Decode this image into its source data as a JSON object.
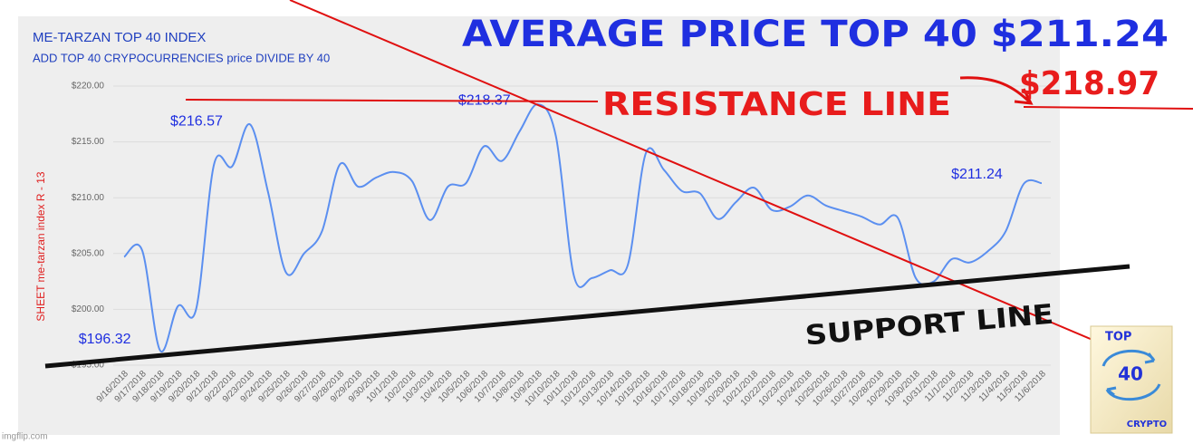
{
  "chart_data": {
    "type": "line",
    "title": "ME-TARZAN TOP 40 INDEX",
    "subtitle": "ADD TOP 40 CRYPOCURRENCIES price DIVIDE BY 40",
    "y_label": "SHEET me-tarzan index   R - 13",
    "categories": [
      "9/16/2018",
      "9/17/2018",
      "9/18/2018",
      "9/19/2018",
      "9/20/2018",
      "9/21/2018",
      "9/22/2018",
      "9/23/2018",
      "9/24/2018",
      "9/25/2018",
      "9/26/2018",
      "9/27/2018",
      "9/28/2018",
      "9/29/2018",
      "9/30/2018",
      "10/1/2018",
      "10/2/2018",
      "10/3/2018",
      "10/4/2018",
      "10/5/2018",
      "10/6/2018",
      "10/7/2018",
      "10/8/2018",
      "10/9/2018",
      "10/10/2018",
      "10/11/2018",
      "10/12/2018",
      "10/13/2018",
      "10/14/2018",
      "10/15/2018",
      "10/16/2018",
      "10/17/2018",
      "10/18/2018",
      "10/19/2018",
      "10/20/2018",
      "10/21/2018",
      "10/22/2018",
      "10/23/2018",
      "10/24/2018",
      "10/25/2018",
      "10/26/2018",
      "10/27/2018",
      "10/28/2018",
      "10/29/2018",
      "10/30/2018",
      "10/31/2018",
      "11/1/2018",
      "11/2/2018",
      "11/3/2018",
      "11/4/2018",
      "11/5/2018",
      "11/6/2018"
    ],
    "series": [
      {
        "name": "me-tarzan index",
        "color": "#5b8ff0",
        "values": [
          204.7,
          205.3,
          196.32,
          200.3,
          200.0,
          213.0,
          212.8,
          216.57,
          210.5,
          203.3,
          205.0,
          207.0,
          213.0,
          211.0,
          211.8,
          212.3,
          211.5,
          208.0,
          211.0,
          211.3,
          214.6,
          213.3,
          216.0,
          218.37,
          215.5,
          203.0,
          202.8,
          203.5,
          204.0,
          214.0,
          212.5,
          210.6,
          210.4,
          208.1,
          209.6,
          210.9,
          208.9,
          209.2,
          210.2,
          209.3,
          208.8,
          208.3,
          207.6,
          208.2,
          202.8,
          202.5,
          204.5,
          204.2,
          205.2,
          207.0,
          211.24,
          211.3
        ],
        "value_labels": [
          null,
          null,
          "$196.32",
          null,
          null,
          null,
          null,
          "$216.57",
          null,
          null,
          null,
          null,
          null,
          null,
          null,
          null,
          null,
          null,
          null,
          null,
          null,
          null,
          null,
          "$218.37",
          null,
          null,
          null,
          null,
          null,
          null,
          null,
          null,
          null,
          null,
          null,
          null,
          null,
          null,
          null,
          null,
          null,
          null,
          null,
          null,
          null,
          null,
          null,
          null,
          null,
          null,
          "$211.24",
          null
        ]
      }
    ],
    "ylim": [
      195,
      220
    ],
    "yticks": [
      {
        "value": 195,
        "label": "$195.00"
      },
      {
        "value": 200,
        "label": "$200.00"
      },
      {
        "value": 205,
        "label": "$205.00"
      },
      {
        "value": 210,
        "label": "$210.00"
      },
      {
        "value": 215,
        "label": "$215.00"
      },
      {
        "value": 220,
        "label": "$220.00"
      }
    ],
    "grid": true,
    "annotations": {
      "headline": "AVERAGE PRICE TOP 40  $211.24",
      "target": "$218.97",
      "resistance": "RESISTANCE  LINE",
      "support": "SUPPORT  LINE"
    }
  },
  "logo": {
    "top": "TOP",
    "number": "40",
    "bottom": "CRYPTO"
  },
  "watermark": "imgflip.com"
}
